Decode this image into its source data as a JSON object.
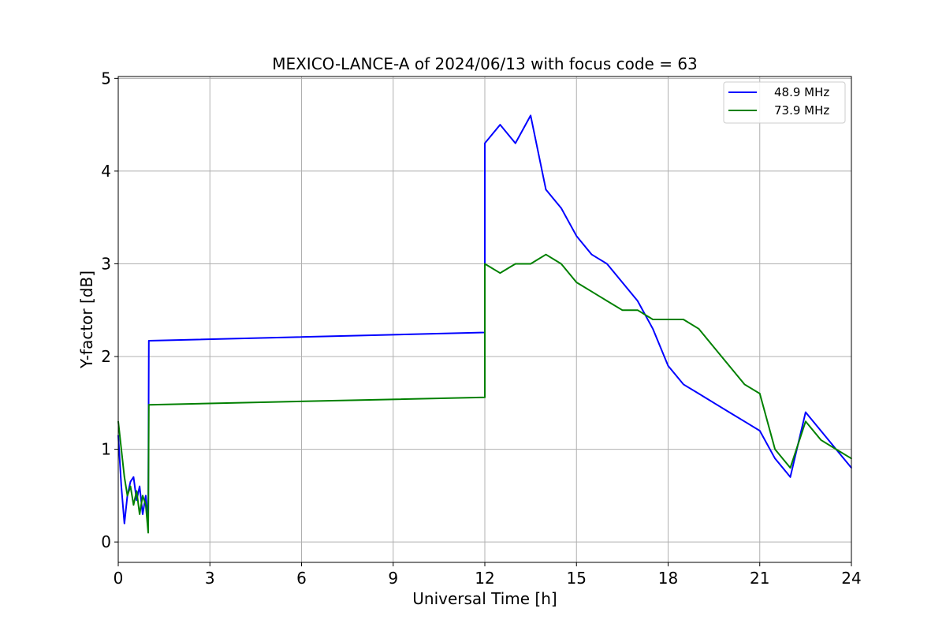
{
  "chart_data": {
    "type": "line",
    "title": "MEXICO-LANCE-A of 2024/06/13 with focus code = 63",
    "xlabel": "Universal Time [h]",
    "ylabel": "Y-factor [dB]",
    "xlim": [
      0,
      24
    ],
    "ylim": [
      -0.22,
      5.02
    ],
    "xticks": [
      0,
      3,
      6,
      9,
      12,
      15,
      18,
      21,
      24
    ],
    "yticks": [
      0,
      1,
      2,
      3,
      4,
      5
    ],
    "grid": true,
    "legend_position": "top-right",
    "series": [
      {
        "name": "48.9 MHz",
        "color": "#0000ff",
        "points": [
          [
            0.0,
            1.15
          ],
          [
            0.1,
            0.6
          ],
          [
            0.2,
            0.2
          ],
          [
            0.3,
            0.5
          ],
          [
            0.4,
            0.65
          ],
          [
            0.5,
            0.7
          ],
          [
            0.6,
            0.45
          ],
          [
            0.7,
            0.6
          ],
          [
            0.8,
            0.3
          ],
          [
            0.9,
            0.5
          ],
          [
            0.98,
            0.2
          ],
          [
            1.0,
            2.17
          ],
          [
            12.0,
            2.26
          ],
          [
            12.0,
            4.3
          ],
          [
            12.5,
            4.5
          ],
          [
            13.0,
            4.3
          ],
          [
            13.5,
            4.6
          ],
          [
            14.0,
            3.8
          ],
          [
            14.5,
            3.6
          ],
          [
            15.0,
            3.3
          ],
          [
            15.5,
            3.1
          ],
          [
            16.0,
            3.0
          ],
          [
            16.5,
            2.8
          ],
          [
            17.0,
            2.6
          ],
          [
            17.5,
            2.3
          ],
          [
            18.0,
            1.9
          ],
          [
            18.5,
            1.7
          ],
          [
            19.0,
            1.6
          ],
          [
            19.5,
            1.5
          ],
          [
            20.0,
            1.4
          ],
          [
            20.5,
            1.3
          ],
          [
            21.0,
            1.2
          ],
          [
            21.5,
            0.9
          ],
          [
            22.0,
            0.7
          ],
          [
            22.5,
            1.4
          ],
          [
            23.0,
            1.2
          ],
          [
            23.5,
            1.0
          ],
          [
            24.0,
            0.8
          ]
        ]
      },
      {
        "name": "73.9 MHz",
        "color": "#008000",
        "points": [
          [
            0.0,
            1.3
          ],
          [
            0.1,
            1.0
          ],
          [
            0.2,
            0.7
          ],
          [
            0.3,
            0.5
          ],
          [
            0.4,
            0.6
          ],
          [
            0.5,
            0.4
          ],
          [
            0.6,
            0.55
          ],
          [
            0.7,
            0.3
          ],
          [
            0.8,
            0.5
          ],
          [
            0.9,
            0.4
          ],
          [
            0.98,
            0.1
          ],
          [
            1.0,
            1.48
          ],
          [
            12.0,
            1.56
          ],
          [
            12.0,
            3.0
          ],
          [
            12.5,
            2.9
          ],
          [
            13.0,
            3.0
          ],
          [
            13.5,
            3.0
          ],
          [
            14.0,
            3.1
          ],
          [
            14.5,
            3.0
          ],
          [
            15.0,
            2.8
          ],
          [
            15.5,
            2.7
          ],
          [
            16.0,
            2.6
          ],
          [
            16.5,
            2.5
          ],
          [
            17.0,
            2.5
          ],
          [
            17.5,
            2.4
          ],
          [
            18.0,
            2.4
          ],
          [
            18.5,
            2.4
          ],
          [
            19.0,
            2.3
          ],
          [
            19.5,
            2.1
          ],
          [
            20.0,
            1.9
          ],
          [
            20.5,
            1.7
          ],
          [
            21.0,
            1.6
          ],
          [
            21.5,
            1.0
          ],
          [
            22.0,
            0.8
          ],
          [
            22.5,
            1.3
          ],
          [
            23.0,
            1.1
          ],
          [
            23.5,
            1.0
          ],
          [
            24.0,
            0.9
          ]
        ]
      }
    ]
  }
}
